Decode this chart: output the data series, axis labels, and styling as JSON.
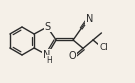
{
  "bg_color": "#f5f0e8",
  "bond_color": "#2a2a2a",
  "figsize": [
    1.35,
    0.83
  ],
  "dpi": 100,
  "xlim": [
    0,
    135
  ],
  "ylim": [
    0,
    83
  ]
}
